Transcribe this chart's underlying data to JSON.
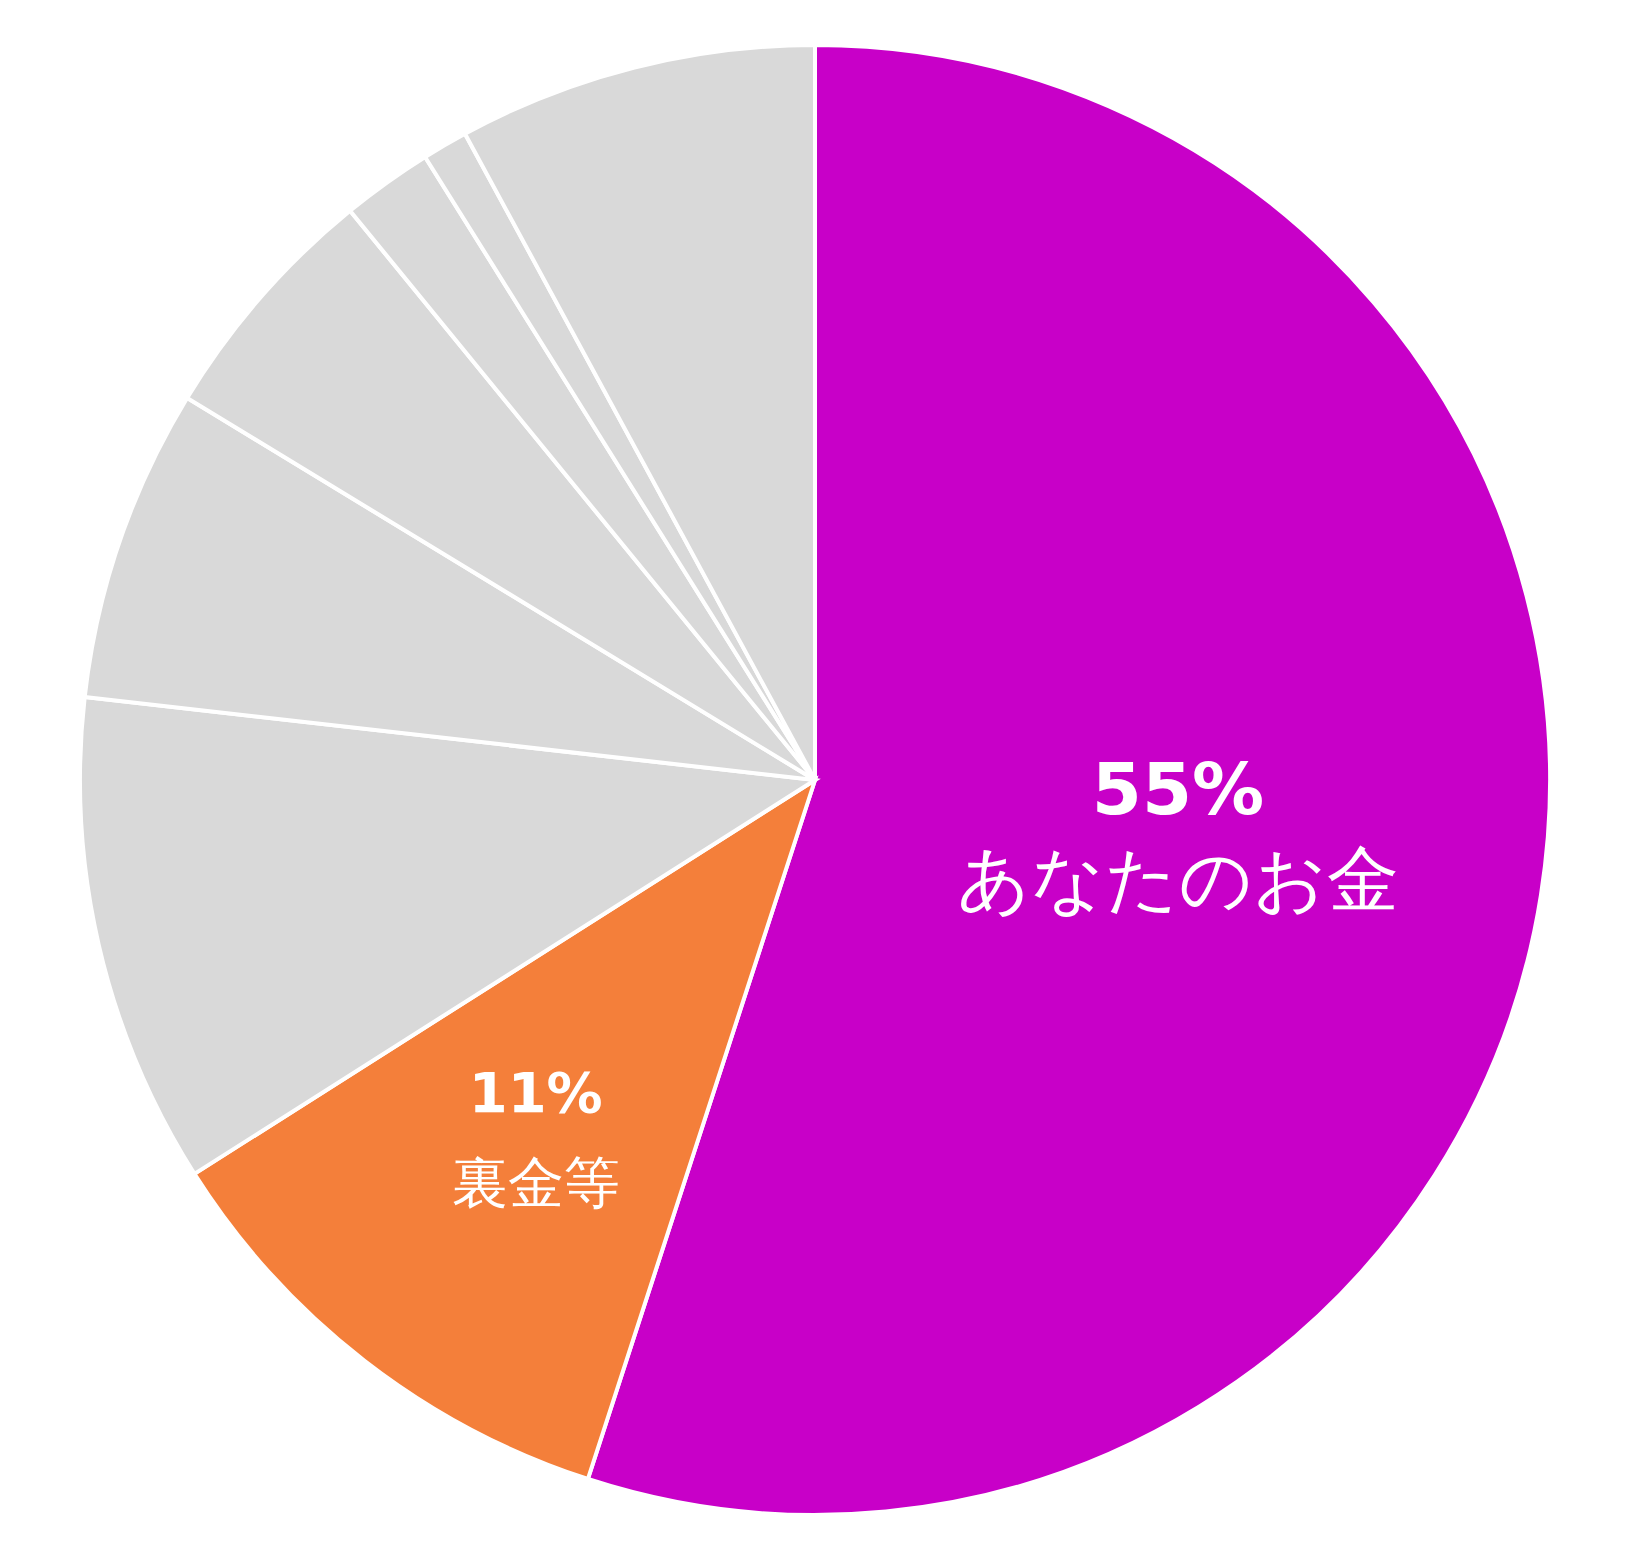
{
  "chart_data": {
    "type": "pie",
    "categories": [
      "あなたのお金",
      "裏金等",
      null,
      null,
      null,
      null,
      null,
      null
    ],
    "values": [
      55,
      11,
      10.8,
      6.9,
      5.4,
      2.0,
      1.0,
      7.9
    ],
    "colors": [
      "#c800c8",
      "#f47f3a",
      "#d9d9d9",
      "#d9d9d9",
      "#d9d9d9",
      "#d9d9d9",
      "#d9d9d9",
      "#d9d9d9"
    ],
    "value_labels": [
      "55%",
      "11%",
      null,
      null,
      null,
      null,
      null,
      null
    ]
  }
}
